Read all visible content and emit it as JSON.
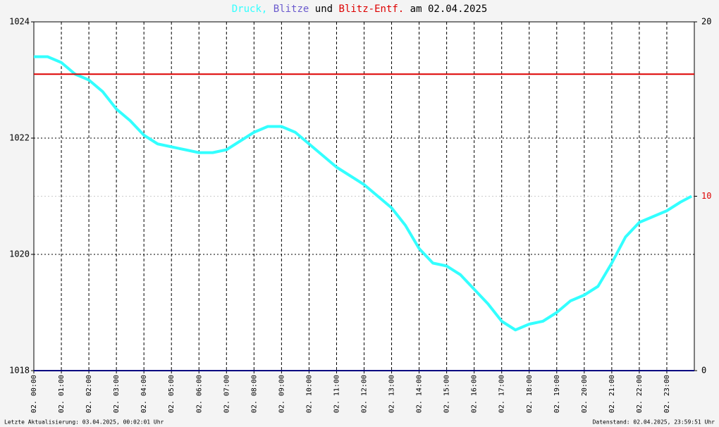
{
  "chart_data": {
    "type": "line",
    "title_parts": [
      {
        "text": "Druck,",
        "color": "#33ffff"
      },
      {
        "text": "Blitze",
        "color": "#6a5acd"
      },
      {
        "text": "und",
        "color": "#000000"
      },
      {
        "text": "Blitz-Entf.",
        "color": "#dd0000"
      },
      {
        "text": "am 02.04.2025",
        "color": "#000000"
      }
    ],
    "x": [
      0,
      0.5,
      1,
      1.5,
      2,
      2.5,
      3,
      3.5,
      4,
      4.5,
      5,
      5.5,
      6,
      6.5,
      7,
      7.5,
      8,
      8.5,
      9,
      9.5,
      10,
      10.5,
      11,
      11.5,
      12,
      12.5,
      13,
      13.5,
      14,
      14.5,
      15,
      15.5,
      16,
      16.5,
      17,
      17.5,
      18,
      18.5,
      19,
      19.5,
      20,
      20.5,
      21,
      21.5,
      22,
      22.5,
      23,
      23.5,
      23.9
    ],
    "series": [
      {
        "color": "#33ffff",
        "axis": "y",
        "values": [
          1023.4,
          1023.4,
          1023.3,
          1023.1,
          1023.0,
          1022.8,
          1022.5,
          1022.3,
          1022.05,
          1021.9,
          1021.85,
          1021.8,
          1021.75,
          1021.75,
          1021.8,
          1021.95,
          1022.1,
          1022.2,
          1022.2,
          1022.1,
          1021.9,
          1021.7,
          1021.5,
          1021.35,
          1021.2,
          1021.0,
          1020.8,
          1020.5,
          1020.1,
          1019.85,
          1019.8,
          1019.65,
          1019.4,
          1019.15,
          1018.85,
          1018.7,
          1018.8,
          1018.85,
          1019.0,
          1019.2,
          1019.3,
          1019.45,
          1019.85,
          1020.3,
          1020.55,
          1020.65,
          1020.75,
          1020.9,
          1021.0
        ]
      },
      {
        "color": "#dd0000",
        "axis": "y2",
        "x": [
          0,
          24
        ],
        "values": [
          17,
          17
        ]
      },
      {
        "color": "#000080",
        "axis": "y2",
        "x": [
          0,
          24
        ],
        "values": [
          0,
          0
        ]
      }
    ],
    "xlim": [
      0,
      24
    ],
    "xticks": [
      {
        "value": 0,
        "label": "02. 00:00"
      },
      {
        "value": 1,
        "label": "02. 01:00"
      },
      {
        "value": 2,
        "label": "02. 02:00"
      },
      {
        "value": 3,
        "label": "02. 03:00"
      },
      {
        "value": 4,
        "label": "02. 04:00"
      },
      {
        "value": 5,
        "label": "02. 05:00"
      },
      {
        "value": 6,
        "label": "02. 06:00"
      },
      {
        "value": 7,
        "label": "02. 07:00"
      },
      {
        "value": 8,
        "label": "02. 08:00"
      },
      {
        "value": 9,
        "label": "02. 09:00"
      },
      {
        "value": 10,
        "label": "02. 10:00"
      },
      {
        "value": 11,
        "label": "02. 11:00"
      },
      {
        "value": 12,
        "label": "02. 12:00"
      },
      {
        "value": 13,
        "label": "02. 13:00"
      },
      {
        "value": 14,
        "label": "02. 14:00"
      },
      {
        "value": 15,
        "label": "02. 15:00"
      },
      {
        "value": 16,
        "label": "02. 16:00"
      },
      {
        "value": 17,
        "label": "02. 17:00"
      },
      {
        "value": 18,
        "label": "02. 18:00"
      },
      {
        "value": 19,
        "label": "02. 19:00"
      },
      {
        "value": 20,
        "label": "02. 20:00"
      },
      {
        "value": 21,
        "label": "02. 21:00"
      },
      {
        "value": 22,
        "label": "02. 22:00"
      },
      {
        "value": 23,
        "label": "02. 23:00"
      }
    ],
    "ylim": [
      1018,
      1024
    ],
    "yticks": [
      1018,
      1020,
      1022,
      1024
    ],
    "y2lim": [
      0,
      20
    ],
    "y2ticks": [
      0,
      10,
      20
    ],
    "y2tick_colors": [
      "#000000",
      "#dd0000",
      "#000000"
    ],
    "grid": true,
    "footer_left": "Letzte Aktualisierung: 03.04.2025, 00:02:01 Uhr",
    "footer_right": "Datenstand: 02.04.2025, 23:59:51 Uhr"
  }
}
